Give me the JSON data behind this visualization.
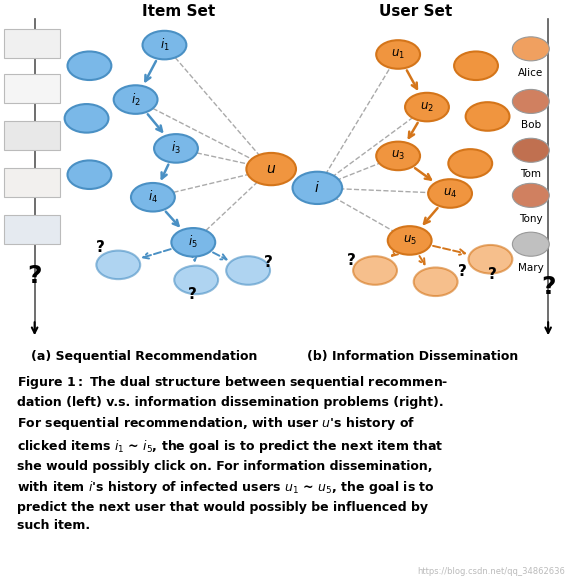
{
  "bg_color": "#ffffff",
  "blue_color": "#7ab8e8",
  "orange_color": "#f0953f",
  "blue_dark": "#4a90c4",
  "orange_dark": "#d4751a",
  "item_set_label": "Item Set",
  "user_set_label": "User Set",
  "caption_a": "(a) Sequential Recommendation",
  "caption_b": "(b) Information Dissemination",
  "watermark": "https://blog.csdn.net/qq_34862636",
  "avatar_names": [
    "Alice",
    "Bob",
    "Tom",
    "Tony",
    "Mary"
  ]
}
